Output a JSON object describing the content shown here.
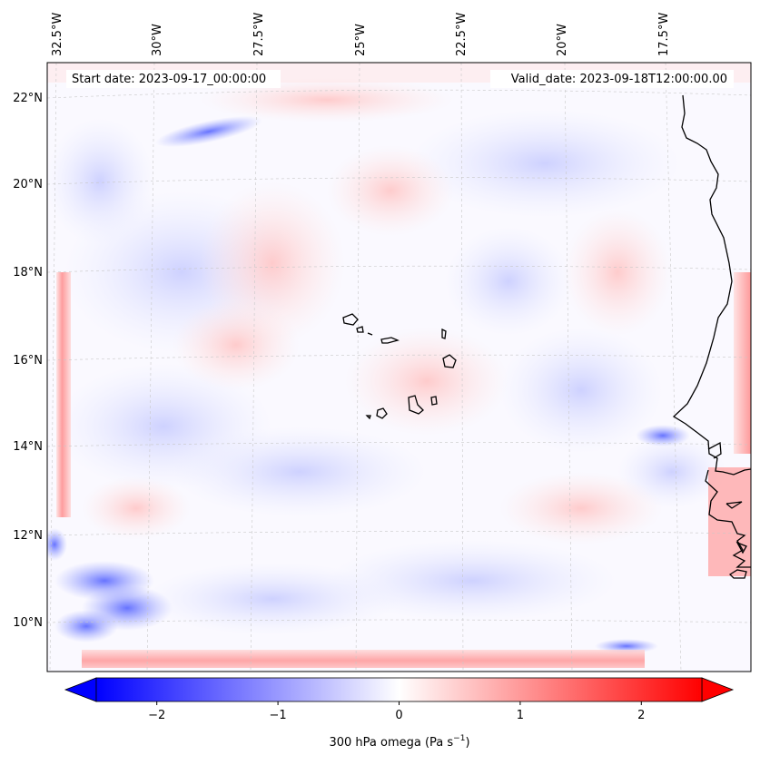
{
  "map": {
    "start_date_label": "Start date: 2023-09-17_00:00:00",
    "valid_date_label": "Valid_date: 2023-09-18T12:00:00.00",
    "lon_labels": [
      "32.5°W",
      "30°W",
      "27.5°W",
      "25°W",
      "22.5°W",
      "20°W",
      "17.5°W"
    ],
    "lat_labels": [
      "22°N",
      "20°N",
      "18°N",
      "16°N",
      "14°N",
      "12°N",
      "10°N"
    ]
  },
  "colorbar": {
    "label_prefix": "300 hPa omega (Pa s",
    "label_exp": "−1",
    "label_suffix": ")",
    "ticks": [
      "−2",
      "−1",
      "0",
      "1",
      "2"
    ],
    "tick_values": [
      -2,
      -1,
      0,
      1,
      2
    ],
    "vmin": -2.5,
    "vmax": 2.5,
    "colors": {
      "negative": "#0000ff",
      "neutral": "#ffffff",
      "positive": "#ff0000"
    }
  }
}
